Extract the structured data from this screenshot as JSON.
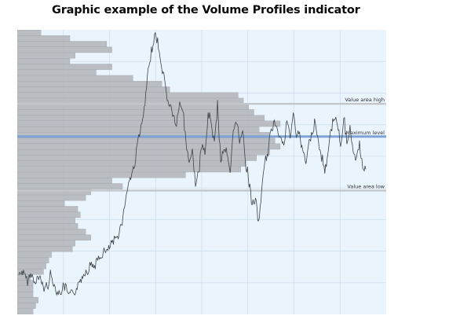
{
  "title": "Graphic example of the Volume Profiles indicator",
  "chart_data": {
    "type": "volume-profile",
    "price_range": [
      0,
      100
    ],
    "levels": [
      {
        "name": "Value area high",
        "price": 74
      },
      {
        "name": "Maximum level",
        "price": 62.5
      },
      {
        "name": "Value area low",
        "price": 43.5
      }
    ],
    "volume_profile": {
      "bin_size": 2,
      "volume_max": 100,
      "volumes": [
        6,
        7,
        8,
        6,
        6,
        6,
        5,
        10,
        11,
        12,
        13,
        21,
        22,
        28,
        26,
        23,
        22,
        24,
        23,
        18,
        26,
        28,
        40,
        36,
        64,
        85,
        87,
        91,
        96,
        100,
        98,
        96,
        92,
        100,
        94,
        90,
        88,
        86,
        84,
        58,
        55,
        44,
        30,
        36,
        20,
        22,
        36,
        34,
        20,
        9
      ]
    },
    "price_series": {
      "x": [
        0,
        4,
        8,
        12,
        16,
        20,
        24,
        28,
        32,
        36,
        40,
        44,
        48,
        52,
        56,
        60,
        64,
        68,
        72,
        76,
        80,
        84,
        88,
        92,
        96,
        100,
        104,
        108,
        112,
        116,
        120,
        124,
        128,
        132,
        136,
        140,
        144,
        148,
        152,
        156,
        160,
        164,
        168,
        172,
        176,
        180,
        184,
        188,
        192,
        196,
        200,
        204,
        208,
        212,
        216,
        220,
        224,
        228,
        232,
        236,
        240,
        244,
        248,
        252,
        256,
        260,
        264,
        268,
        272,
        276,
        280,
        284,
        288,
        292,
        296,
        300,
        304,
        308,
        312,
        316,
        320,
        324,
        328,
        332,
        336,
        340,
        344,
        348,
        352,
        356,
        360,
        364,
        368,
        372,
        376,
        380,
        384,
        388,
        392,
        396,
        400,
        404,
        408,
        412,
        416,
        420,
        424,
        428,
        432,
        436,
        440
      ],
      "y": [
        14,
        15,
        13,
        12,
        14,
        11,
        13,
        12,
        9,
        10,
        14,
        11,
        8,
        7,
        10,
        9,
        6,
        8,
        8,
        11,
        13,
        15,
        16,
        18,
        17,
        19,
        20,
        22,
        22,
        24,
        25,
        27,
        30,
        34,
        42,
        47,
        50,
        55,
        63,
        66,
        74,
        85,
        93,
        98,
        96,
        88,
        84,
        76,
        73,
        70,
        66,
        74,
        72,
        60,
        54,
        57,
        46,
        49,
        60,
        56,
        70,
        68,
        60,
        73,
        54,
        59,
        56,
        49,
        64,
        69,
        60,
        66,
        52,
        47,
        38,
        41,
        31,
        44,
        53,
        57,
        64,
        68,
        66,
        62,
        59,
        68,
        62,
        70,
        64,
        62,
        58,
        53,
        60,
        64,
        68,
        60,
        55,
        50,
        57,
        65,
        70,
        67,
        60,
        69,
        60,
        66,
        55,
        56,
        59,
        52,
        51
      ]
    }
  }
}
